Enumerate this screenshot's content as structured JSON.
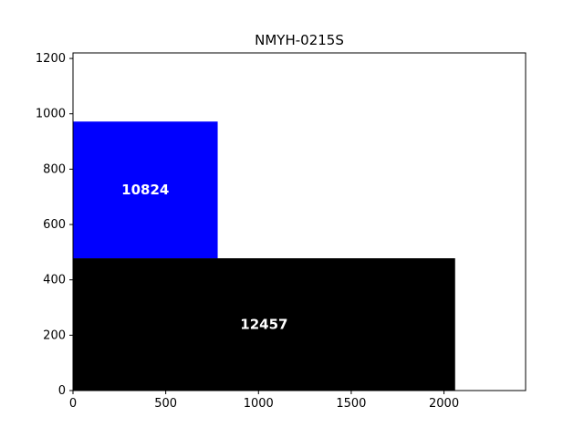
{
  "chart_data": {
    "type": "treemap-rectangles",
    "title": "NMYH-0215S",
    "xlabel": "",
    "ylabel": "",
    "xlim": [
      0,
      2440
    ],
    "ylim": [
      0,
      1220
    ],
    "x_ticks": [
      0,
      500,
      1000,
      1500,
      2000
    ],
    "y_ticks": [
      0,
      200,
      400,
      600,
      800,
      1000,
      1200
    ],
    "grid": false,
    "rectangles": [
      {
        "label": "12457",
        "x0": 0,
        "y0": 0,
        "x1": 2060,
        "y1": 478,
        "color": "#000000"
      },
      {
        "label": "10824",
        "x0": 0,
        "y0": 478,
        "x1": 780,
        "y1": 972,
        "color": "#0000ff"
      }
    ]
  }
}
